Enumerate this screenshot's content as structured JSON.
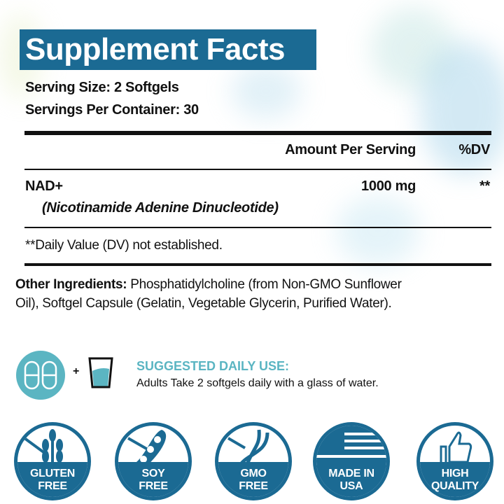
{
  "title": "Supplement Facts",
  "serving_size": "Serving Size: 2 Softgels",
  "servings_per_container": "Servings Per Container: 30",
  "header": {
    "amount": "Amount Per Serving",
    "dv": "%DV"
  },
  "ingredient": {
    "name": "NAD+",
    "subname": "(Nicotinamide Adenine Dinucleotide)",
    "amount": "1000 mg",
    "dv": "**"
  },
  "footnote": "**Daily Value (DV) not established.",
  "other": {
    "label": "Other Ingredients:",
    "line1": " Phosphatidylcholine (from Non-GMO Sunflower",
    "line2": "Oil), Softgel Capsule (Gelatin, Vegetable Glycerin, Purified Water)."
  },
  "usage": {
    "plus": "+",
    "heading": "SUGGESTED DAILY USE:",
    "text": "Adults Take 2 softgels daily with a glass of water."
  },
  "badges": [
    {
      "icon": "wheat-icon",
      "line1": "GLUTEN",
      "line2": "FREE"
    },
    {
      "icon": "soybean-icon",
      "line1": "SOY",
      "line2": "FREE"
    },
    {
      "icon": "dna-icon",
      "line1": "GMO",
      "line2": "FREE"
    },
    {
      "icon": "us-flag-icon",
      "line1": "MADE IN",
      "line2": "USA"
    },
    {
      "icon": "thumbs-up-icon",
      "line1": "HIGH",
      "line2": "QUALITY"
    }
  ],
  "colors": {
    "brand": "#1b6a93",
    "accent": "#5bb5c2"
  }
}
